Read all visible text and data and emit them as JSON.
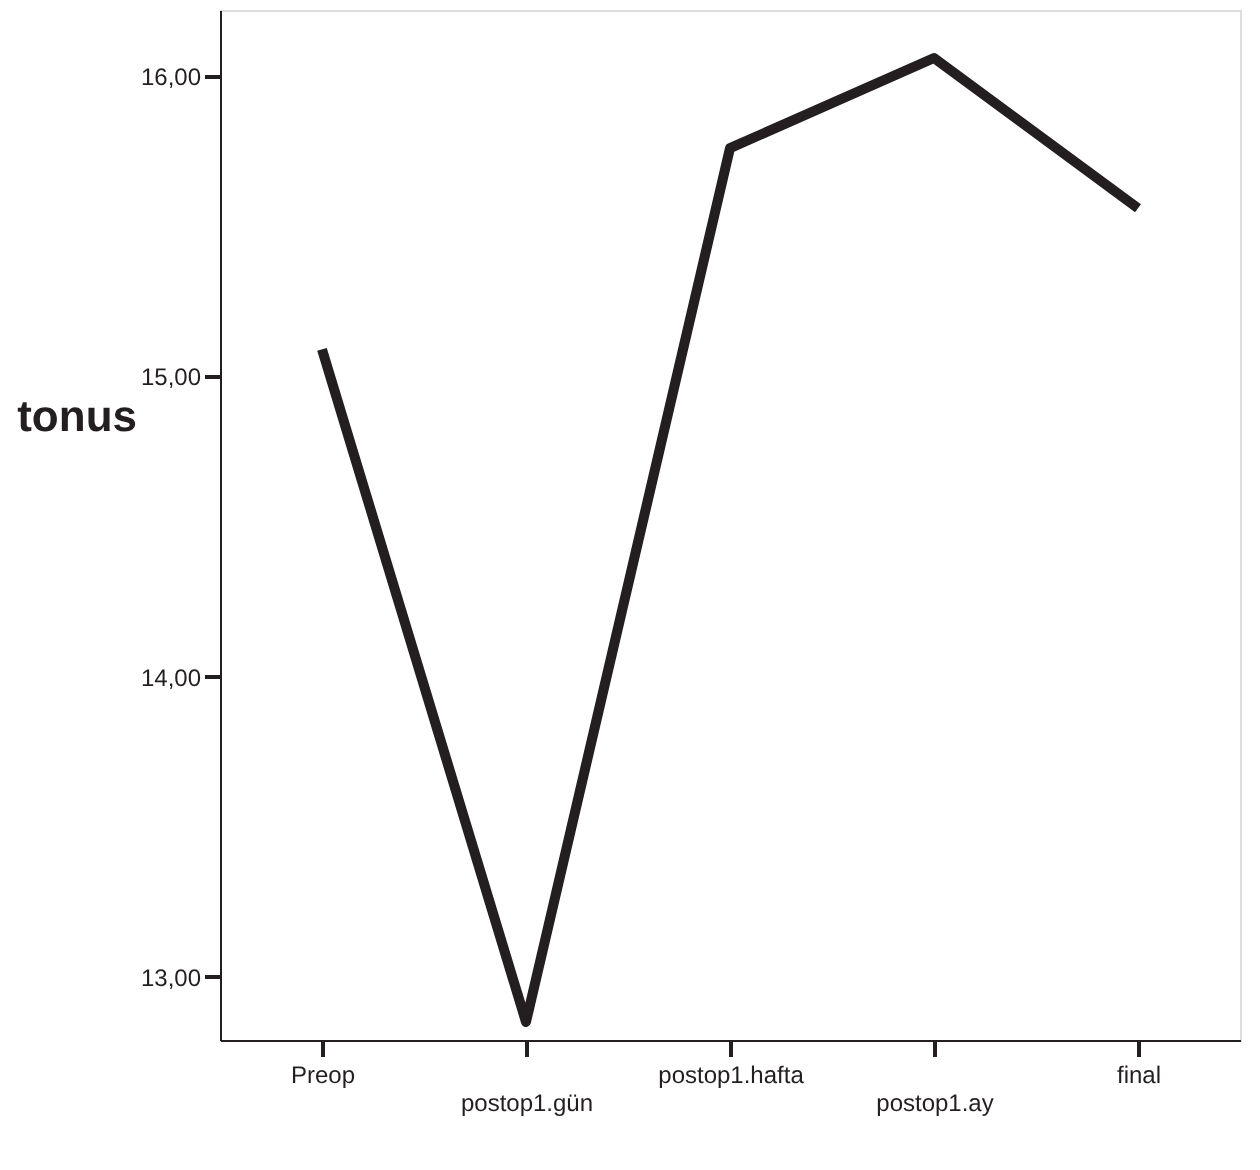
{
  "chart_data": {
    "type": "line",
    "ylabel": "tonus",
    "categories": [
      "Preop",
      "postop1.gün",
      "postop1.hafta",
      "postop1.ay",
      "final"
    ],
    "series": [
      {
        "color": "#231f20",
        "values": [
          15.09,
          12.85,
          15.76,
          16.06,
          15.56
        ]
      }
    ],
    "ylim": [
      12.79,
      16.22
    ],
    "yticks": [
      {
        "value": 13,
        "label": "13,00"
      },
      {
        "value": 14,
        "label": "14,00"
      },
      {
        "value": 15,
        "label": "15,00"
      },
      {
        "value": 16,
        "label": "16,00"
      }
    ],
    "grid": false,
    "legend": false,
    "marker": "none",
    "line_style": "solid"
  }
}
